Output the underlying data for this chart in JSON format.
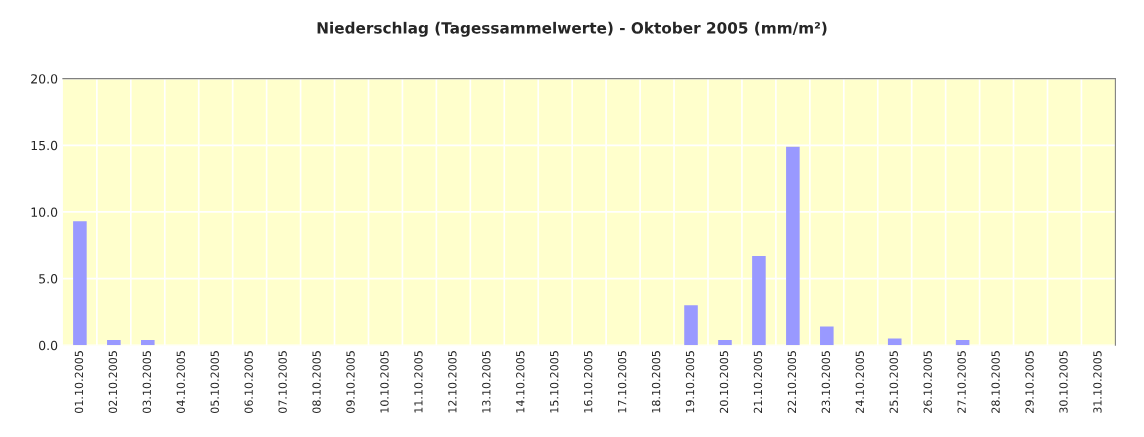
{
  "chart_data": {
    "type": "bar",
    "title": "Niederschlag (Tagessammelwerte) - Oktober 2005 (mm/m²)",
    "categories": [
      "01.10.2005",
      "02.10.2005",
      "03.10.2005",
      "04.10.2005",
      "05.10.2005",
      "06.10.2005",
      "07.10.2005",
      "08.10.2005",
      "09.10.2005",
      "10.10.2005",
      "11.10.2005",
      "12.10.2005",
      "13.10.2005",
      "14.10.2005",
      "15.10.2005",
      "16.10.2005",
      "17.10.2005",
      "18.10.2005",
      "19.10.2005",
      "20.10.2005",
      "21.10.2005",
      "22.10.2005",
      "23.10.2005",
      "24.10.2005",
      "25.10.2005",
      "26.10.2005",
      "27.10.2005",
      "28.10.2005",
      "29.10.2005",
      "30.10.2005",
      "31.10.2005"
    ],
    "values": [
      9.3,
      0.4,
      0.4,
      0,
      0,
      0,
      0,
      0,
      0,
      0,
      0,
      0,
      0,
      0,
      0,
      0,
      0,
      0,
      3.0,
      0.4,
      6.7,
      14.9,
      1.4,
      0,
      0.5,
      0,
      0.4,
      0,
      0,
      0,
      0
    ],
    "color": "#9999ff",
    "ylim": [
      0,
      20
    ],
    "yticks": [
      {
        "value": 0,
        "label": "0.0"
      },
      {
        "value": 5,
        "label": "5.0"
      },
      {
        "value": 10,
        "label": "10.0"
      },
      {
        "value": 15,
        "label": "15.0"
      },
      {
        "value": 20,
        "label": "20.0"
      }
    ],
    "grid": true,
    "legend": false
  }
}
